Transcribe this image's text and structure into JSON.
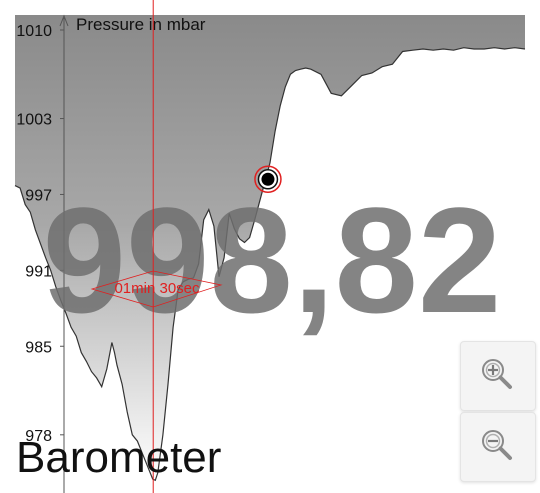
{
  "app": {
    "title": "Barometer"
  },
  "reading": {
    "value": "998,82"
  },
  "span": {
    "label": "01min 30sec"
  },
  "zoom": {
    "in_icon": "zoom-in-icon",
    "out_icon": "zoom-out-icon"
  },
  "colors": {
    "accent": "#e02020",
    "area_top": "#8a8a8a",
    "area_bottom": "#ffffff",
    "line": "#333333"
  },
  "chart_data": {
    "type": "area",
    "ylabel": "Pressure in mbar",
    "y_ticks": [
      {
        "value": 978,
        "label": "978"
      },
      {
        "value": 985,
        "label": "985"
      },
      {
        "value": 991,
        "label": "991"
      },
      {
        "value": 997,
        "label": "997"
      },
      {
        "value": 1003,
        "label": "1003"
      },
      {
        "value": 1010,
        "label": "1010"
      }
    ],
    "ylim": [
      973.4,
      1010
    ],
    "xlim": [
      0,
      100
    ],
    "cursor_x": 27.1,
    "marker": {
      "x": 49.6,
      "y": 998.2
    },
    "series": [
      {
        "x": [
          0,
          1,
          2,
          3,
          4,
          5,
          6,
          7,
          8,
          9,
          10,
          11,
          12,
          13,
          14,
          15,
          16,
          17,
          18,
          19,
          19.5,
          20,
          21,
          22,
          23,
          24,
          25,
          26,
          27,
          27.5,
          28,
          29,
          30,
          31,
          32,
          33,
          34,
          35,
          36,
          37,
          38,
          39,
          40,
          41,
          42,
          43,
          44,
          45,
          46,
          47,
          48,
          49,
          50,
          51,
          52,
          53,
          54,
          55,
          56,
          57,
          58,
          60,
          62,
          64,
          66,
          68,
          70,
          72,
          74,
          76,
          78,
          80,
          82,
          84,
          86,
          88,
          90,
          92,
          94,
          96,
          98,
          100
        ],
        "y": [
          997.7,
          997.5,
          996.2,
          995.6,
          994.2,
          993.1,
          992.0,
          991.0,
          989.7,
          988.6,
          987.6,
          986.5,
          985.8,
          984.5,
          983.8,
          983.0,
          982.5,
          981.8,
          983.2,
          985.3,
          984.5,
          983.5,
          982.0,
          979.8,
          978.0,
          977.5,
          976.5,
          975.5,
          974.5,
          974.4,
          975.0,
          978.0,
          982.0,
          986.5,
          989.5,
          990.1,
          990.3,
          990.4,
          991.5,
          995.0,
          995.8,
          994.5,
          990.5,
          992.0,
          995.5,
          994.3,
          993.5,
          993.2,
          993.6,
          995.0,
          996.5,
          998.0,
          999.5,
          1002.0,
          1004.0,
          1005.5,
          1006.5,
          1006.8,
          1006.9,
          1007.0,
          1006.9,
          1006.5,
          1005.0,
          1004.8,
          1005.6,
          1006.4,
          1006.6,
          1007.1,
          1007.3,
          1008.3,
          1008.4,
          1008.5,
          1008.4,
          1008.5,
          1008.4,
          1008.6,
          1008.5,
          1008.5,
          1008.6,
          1008.5,
          1008.6,
          1008.5
        ]
      }
    ]
  }
}
